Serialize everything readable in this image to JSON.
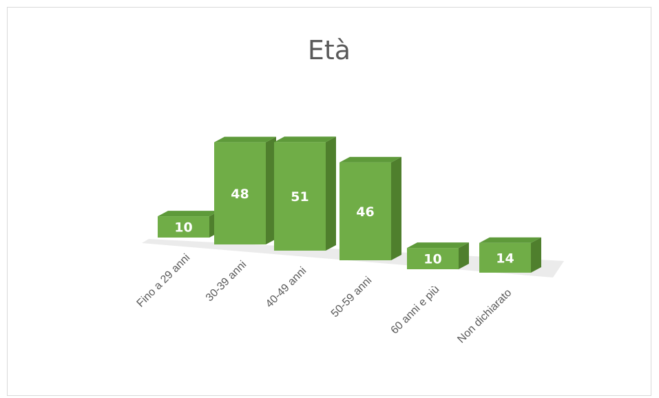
{
  "chart_data": {
    "type": "bar",
    "title": "Età",
    "categories": [
      "Fino a 29 anni",
      "30-39 anni",
      "40-49 anni",
      "50-59 anni",
      "60 anni e più",
      "Non dichiarato"
    ],
    "values": [
      10,
      48,
      51,
      46,
      10,
      14
    ],
    "data_labels": [
      "10",
      "48",
      "51",
      "46",
      "10",
      "14"
    ],
    "xlabel": "",
    "ylabel": "",
    "ylim": [
      0,
      55
    ],
    "grid": false,
    "legend": "none",
    "style": "3d-columns",
    "colors": {
      "front": "#70ad47",
      "side": "#4f7f2d",
      "top": "#5e9a3a",
      "floor": "#e3e3e3"
    }
  }
}
